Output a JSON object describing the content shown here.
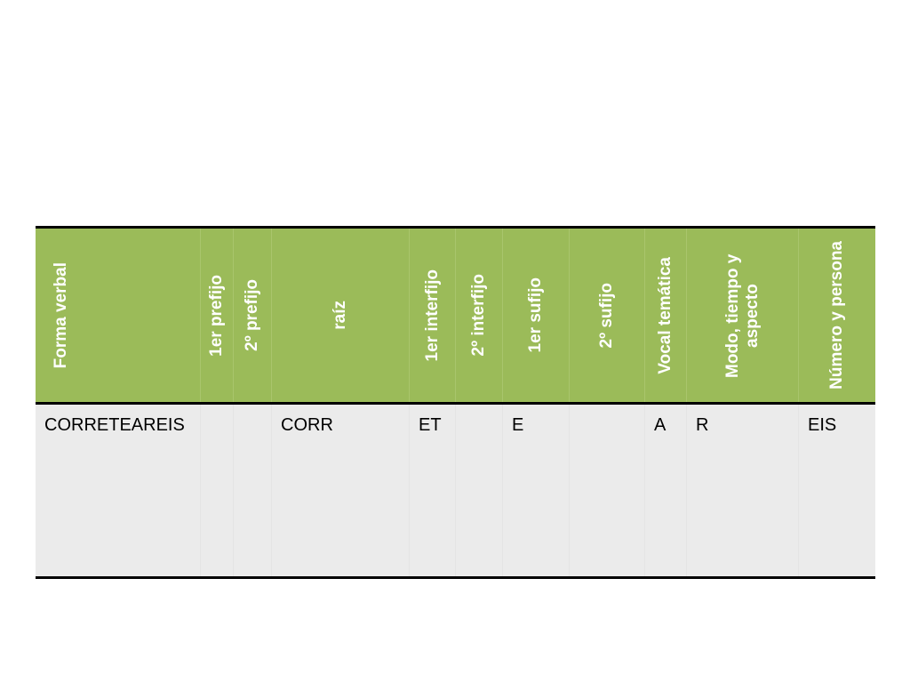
{
  "table": {
    "header": [
      "Forma verbal",
      "1er prefijo",
      "2º prefijo",
      "raíz",
      "1er interfijo",
      "2º interfijo",
      "1er sufijo",
      "2º sufijo",
      "Vocal temática",
      "Modo, tiempo y aspecto",
      "Número y persona"
    ],
    "rows": [
      [
        "CORRETEAREIS",
        null,
        null,
        "CORR",
        "ET",
        null,
        "E",
        null,
        "A",
        "R",
        "EIS"
      ]
    ]
  }
}
